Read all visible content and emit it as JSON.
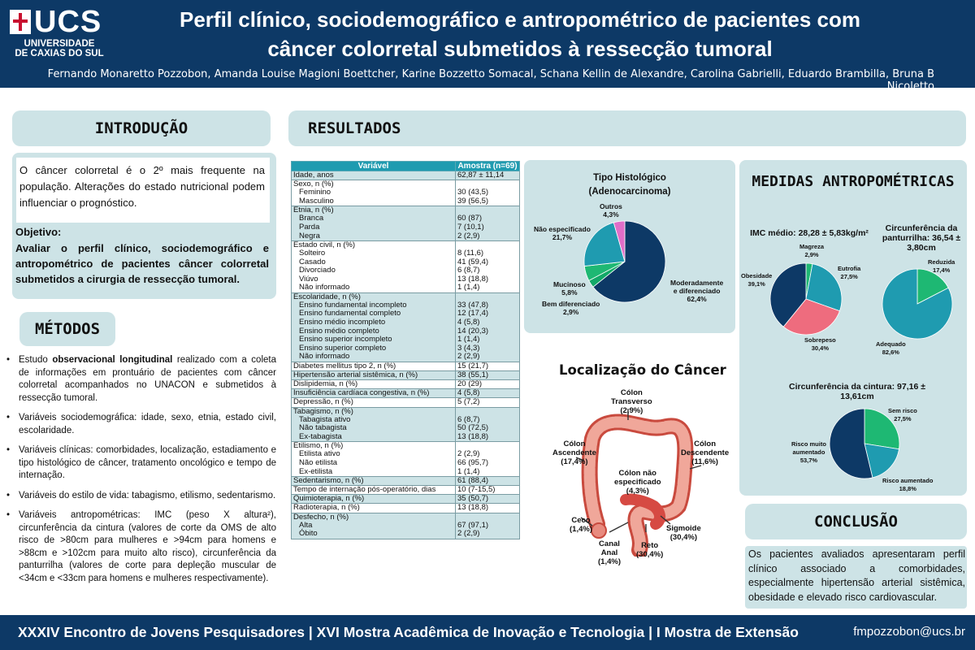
{
  "header": {
    "logo_short": "UCS",
    "logo_line1": "UNIVERSIDADE",
    "logo_line2": "DE CAXIAS DO SUL",
    "title_line1": "Perfil clínico, sociodemográfico e antropométrico de pacientes com",
    "title_line2": "câncer colorretal submetidos à ressecção tumoral",
    "authors": "Fernando Monaretto Pozzobon, Amanda Louise Magioni Boettcher, Karine Bozzetto Somacal, Schana Kellin de Alexandre, Carolina Gabrielli, Eduardo Brambilla, Bruna B Nicoletto"
  },
  "introducao": {
    "heading": "INTRODUÇÃO",
    "text": "O câncer colorretal é o 2º mais frequente na população. Alterações do estado nutricional podem influenciar o prognóstico.",
    "objetivo_label": "Objetivo:",
    "objetivo_text": "Avaliar o perfil clínico, sociodemográfico e antropométrico de pacientes câncer colorretal submetidos a cirurgia de ressecção tumoral."
  },
  "metodos": {
    "heading": "MÉTODOS",
    "item1_pre": "Estudo ",
    "item1_bold": "observacional longitudinal",
    "item1_post": " realizado com a coleta de informações em prontuário de pacientes com câncer colorretal acompanhados no UNACON e submetidos à ressecção tumoral.",
    "item2": "Variáveis sociodemográfica: idade, sexo, etnia, estado civil, escolaridade.",
    "item3": "Variáveis clínicas: comorbidades, localização, estadiamento e tipo histológico de câncer, tratamento oncológico e tempo de internação.",
    "item4": "Variáveis do estilo de vida: tabagismo, etilismo, sedentarismo.",
    "item5": "Variáveis antropométricas: IMC (peso X altura²), circunferência da cintura (valores de corte da OMS de alto risco de >80cm para mulheres e >94cm para homens e >88cm e >102cm para muito alto risco), circunferência da panturrilha (valores de corte para depleção muscular de <34cm e <33cm para homens e mulheres respectivamente)."
  },
  "resultados": {
    "heading": "RESULTADOS",
    "table": {
      "col1": "Variável",
      "col2": "Amostra (n=69)",
      "rows": [
        {
          "v": "Idade, anos",
          "a": "62,87 ± 11,14",
          "sub": false,
          "start": true,
          "last": true,
          "shade": true
        },
        {
          "v": "Sexo, n (%)",
          "a": "",
          "sub": false,
          "start": true,
          "last": false,
          "shade": false
        },
        {
          "v": "Feminino",
          "a": "30 (43,5)",
          "sub": true,
          "start": false,
          "last": false,
          "shade": false
        },
        {
          "v": "Masculino",
          "a": "39 (56,5)",
          "sub": true,
          "start": false,
          "last": true,
          "shade": false
        },
        {
          "v": "Etnia, n (%)",
          "a": "",
          "sub": false,
          "start": true,
          "last": false,
          "shade": true
        },
        {
          "v": "Branca",
          "a": "60 (87)",
          "sub": true,
          "start": false,
          "last": false,
          "shade": true
        },
        {
          "v": "Parda",
          "a": "7 (10,1)",
          "sub": true,
          "start": false,
          "last": false,
          "shade": true
        },
        {
          "v": "Negra",
          "a": "2 (2,9)",
          "sub": true,
          "start": false,
          "last": true,
          "shade": true
        },
        {
          "v": "Estado civil, n (%)",
          "a": "",
          "sub": false,
          "start": true,
          "last": false,
          "shade": false
        },
        {
          "v": "Solteiro",
          "a": "8 (11,6)",
          "sub": true,
          "start": false,
          "last": false,
          "shade": false
        },
        {
          "v": "Casado",
          "a": "41 (59,4)",
          "sub": true,
          "start": false,
          "last": false,
          "shade": false
        },
        {
          "v": "Divorciado",
          "a": "6 (8,7)",
          "sub": true,
          "start": false,
          "last": false,
          "shade": false
        },
        {
          "v": "Viúvo",
          "a": "13 (18,8)",
          "sub": true,
          "start": false,
          "last": false,
          "shade": false
        },
        {
          "v": "Não informado",
          "a": "1 (1,4)",
          "sub": true,
          "start": false,
          "last": true,
          "shade": false
        },
        {
          "v": "Escolaridade, n (%)",
          "a": "",
          "sub": false,
          "start": true,
          "last": false,
          "shade": true
        },
        {
          "v": "Ensino fundamental incompleto",
          "a": "33 (47,8)",
          "sub": true,
          "start": false,
          "last": false,
          "shade": true
        },
        {
          "v": "Ensino fundamental completo",
          "a": "12 (17,4)",
          "sub": true,
          "start": false,
          "last": false,
          "shade": true
        },
        {
          "v": "Ensino médio incompleto",
          "a": "4 (5,8)",
          "sub": true,
          "start": false,
          "last": false,
          "shade": true
        },
        {
          "v": "Ensino médio completo",
          "a": "14 (20,3)",
          "sub": true,
          "start": false,
          "last": false,
          "shade": true
        },
        {
          "v": "Ensino superior incompleto",
          "a": "1 (1,4)",
          "sub": true,
          "start": false,
          "last": false,
          "shade": true
        },
        {
          "v": "Ensino superior completo",
          "a": "3 (4,3)",
          "sub": true,
          "start": false,
          "last": false,
          "shade": true
        },
        {
          "v": "Não informado",
          "a": "2 (2,9)",
          "sub": true,
          "start": false,
          "last": true,
          "shade": true
        },
        {
          "v": "Diabetes mellitus tipo 2, n (%)",
          "a": "15 (21,7)",
          "sub": false,
          "start": true,
          "last": true,
          "shade": false
        },
        {
          "v": "Hipertensão arterial sistêmica, n (%)",
          "a": "38 (55,1)",
          "sub": false,
          "start": true,
          "last": true,
          "shade": true
        },
        {
          "v": "Dislipidemia, n (%)",
          "a": "20 (29)",
          "sub": false,
          "start": true,
          "last": true,
          "shade": false
        },
        {
          "v": "Insuficiência cardíaca congestiva, n (%)",
          "a": "4 (5,8)",
          "sub": false,
          "start": true,
          "last": true,
          "shade": true
        },
        {
          "v": "Depressão, n (%)",
          "a": "5 (7,2)",
          "sub": false,
          "start": true,
          "last": true,
          "shade": false
        },
        {
          "v": "Tabagismo, n (%)",
          "a": "",
          "sub": false,
          "start": true,
          "last": false,
          "shade": true
        },
        {
          "v": "Tabagista ativo",
          "a": "6 (8,7)",
          "sub": true,
          "start": false,
          "last": false,
          "shade": true
        },
        {
          "v": "Não tabagista",
          "a": "50 (72,5)",
          "sub": true,
          "start": false,
          "last": false,
          "shade": true
        },
        {
          "v": "Ex-tabagista",
          "a": "13 (18,8)",
          "sub": true,
          "start": false,
          "last": true,
          "shade": true
        },
        {
          "v": "Etilismo, n (%)",
          "a": "",
          "sub": false,
          "start": true,
          "last": false,
          "shade": false
        },
        {
          "v": "Etilista ativo",
          "a": "2 (2,9)",
          "sub": true,
          "start": false,
          "last": false,
          "shade": false
        },
        {
          "v": "Não etilista",
          "a": "66 (95,7)",
          "sub": true,
          "start": false,
          "last": false,
          "shade": false
        },
        {
          "v": "Ex-etilista",
          "a": "1 (1,4)",
          "sub": true,
          "start": false,
          "last": true,
          "shade": false
        },
        {
          "v": "Sedentarismo, n (%)",
          "a": "61 (88,4)",
          "sub": false,
          "start": true,
          "last": true,
          "shade": true
        },
        {
          "v": "Tempo de internação pós-operatório, dias",
          "a": "10 (7-15,5)",
          "sub": false,
          "start": true,
          "last": true,
          "shade": false
        },
        {
          "v": "Quimioterapia, n (%)",
          "a": "35 (50,7)",
          "sub": false,
          "start": true,
          "last": true,
          "shade": true
        },
        {
          "v": "Radioterapia, n (%)",
          "a": "13 (18,8)",
          "sub": false,
          "start": true,
          "last": true,
          "shade": false
        },
        {
          "v": "Desfecho, n (%)",
          "a": "",
          "sub": false,
          "start": true,
          "last": false,
          "shade": true
        },
        {
          "v": "Alta",
          "a": "67 (97,1)",
          "sub": true,
          "start": false,
          "last": false,
          "shade": true
        },
        {
          "v": "Óbito",
          "a": "2 (2,9)",
          "sub": true,
          "start": false,
          "last": true,
          "shade": true
        }
      ]
    }
  },
  "histologico": {
    "title_line1": "Tipo Histológico",
    "title_line2": "(Adenocarcinoma)",
    "labels": {
      "outros": "Outros\n4,3%",
      "nao_esp": "Não especificado\n21,7%",
      "mucinoso": "Mucinoso\n5,8%",
      "bem_dif": "Bem diferenciado\n2,9%",
      "mod_dif": "Moderadamente\ne diferenciado\n62,4%"
    }
  },
  "localizacao": {
    "title": "Localização do Câncer",
    "labels": {
      "transverso": "Cólon\nTransverso\n(2,9%)",
      "ascendente": "Cólon\nAscendente\n(17,4%)",
      "descendente": "Cólon\nDescendente\n(11,6%)",
      "nao_esp": "Cólon não\nespecificado\n(4,3%)",
      "ceco": "Ceco\n(1,4%)",
      "canal_anal": "Canal\nAnal\n(1,4%)",
      "reto": "Reto\n(30,4%)",
      "sigmoide": "Sigmoide\n(30,4%)"
    }
  },
  "antropometria": {
    "heading": "MEDIDAS ANTROPOMÉTRICAS",
    "imc_title": "IMC médio: 28,28 ± 5,83kg/m²",
    "pant_title": "Circunferência da panturrilha: 36,54 ± 3,80cm",
    "cint_title": "Circunferência da cintura: 97,16 ± 13,61cm",
    "imc_labels": {
      "magreza": "Magreza\n2,9%",
      "eutrofia": "Eutrofia\n27,5%",
      "sobrepeso": "Sobrepeso\n30,4%",
      "obesidade": "Obesidade\n39,1%"
    },
    "pant_labels": {
      "reduzida": "Reduzida\n17,4%",
      "adequado": "Adequado\n82,6%"
    },
    "cint_labels": {
      "sem_risco": "Sem risco\n27,5%",
      "risco_aum": "Risco aumentado\n18,8%",
      "muito_aum": "Risco muito\naumentado\n53,7%"
    }
  },
  "chart_data": [
    {
      "type": "pie",
      "title": "Tipo Histológico (Adenocarcinoma)",
      "categories": [
        "Moderadamente e diferenciado",
        "Bem diferenciado",
        "Mucinoso",
        "Não especificado",
        "Outros"
      ],
      "values": [
        62.4,
        2.9,
        5.8,
        21.7,
        4.3
      ],
      "colors": [
        "#0d3966",
        "#12a868",
        "#1eb873",
        "#1f9bb0",
        "#e06ec8"
      ],
      "extra_colors": [
        "#7ed0dc"
      ]
    },
    {
      "type": "pie",
      "title": "IMC médio: 28,28 ± 5,83kg/m²",
      "categories": [
        "Magreza",
        "Eutrofia",
        "Sobrepeso",
        "Obesidade"
      ],
      "values": [
        2.9,
        27.5,
        30.4,
        39.1
      ],
      "colors": [
        "#1eb873",
        "#1f9bb0",
        "#ee6c7e",
        "#0d3966"
      ]
    },
    {
      "type": "pie",
      "title": "Circunferência da panturrilha: 36,54 ± 3,80cm",
      "categories": [
        "Reduzida",
        "Adequado"
      ],
      "values": [
        17.4,
        82.6
      ],
      "colors": [
        "#1eb873",
        "#1f9bb0"
      ]
    },
    {
      "type": "pie",
      "title": "Circunferência da cintura: 97,16 ± 13,61cm",
      "categories": [
        "Sem risco",
        "Risco aumentado",
        "Risco muito aumentado"
      ],
      "values": [
        27.5,
        18.8,
        53.7
      ],
      "colors": [
        "#1eb873",
        "#1f9bb0",
        "#0d3966"
      ]
    }
  ],
  "conclusao": {
    "heading": "CONCLUSÃO",
    "text": "Os pacientes avaliados apresentaram perfil clínico associado a comorbidades, especialmente hipertensão arterial sistêmica, obesidade e elevado risco cardiovascular."
  },
  "footer": {
    "event": "XXXIV Encontro de Jovens Pesquisadores | XVI Mostra Acadêmica de Inovação e Tecnologia | I Mostra de Extensão",
    "email": "fmpozzobon@ucs.br"
  },
  "colors": {
    "navy": "#0d3966",
    "panel": "#cde3e6",
    "teal": "#1f9bb0",
    "green": "#1eb873",
    "pink": "#ee6c7e"
  }
}
